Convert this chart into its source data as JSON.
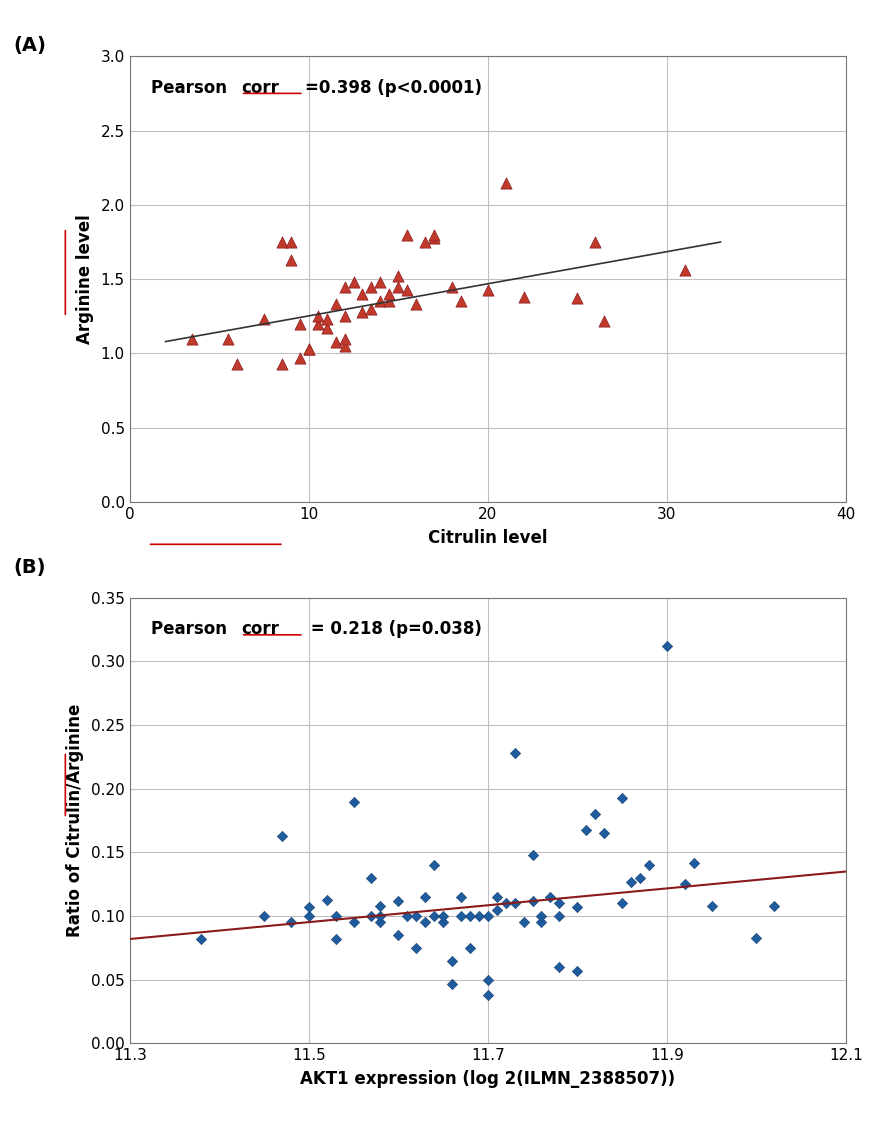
{
  "plot_A": {
    "title_label": "(A)",
    "annotation1": "Pearson ",
    "annotation2": "corr",
    "annotation3": "=0.398 (p<0.0001)",
    "xlabel": "Citrulin level",
    "ylabel": "Arginine level",
    "xlim": [
      0,
      40
    ],
    "ylim": [
      0.0,
      3.0
    ],
    "xticks": [
      0,
      10,
      20,
      30,
      40
    ],
    "yticks": [
      0.0,
      0.5,
      1.0,
      1.5,
      2.0,
      2.5,
      3.0
    ],
    "marker_color": "#C0392B",
    "marker_edge_color": "#8B1A1A",
    "line_color": "#333333",
    "scatter_x": [
      3.5,
      5.5,
      6.0,
      7.5,
      8.5,
      8.5,
      9.0,
      9.0,
      9.5,
      9.5,
      10.0,
      10.0,
      10.5,
      10.5,
      11.0,
      11.0,
      11.5,
      11.5,
      12.0,
      12.0,
      12.0,
      12.0,
      12.5,
      13.0,
      13.0,
      13.5,
      13.5,
      14.0,
      14.0,
      14.5,
      14.5,
      15.0,
      15.0,
      15.5,
      15.5,
      16.0,
      16.5,
      17.0,
      17.0,
      18.0,
      18.5,
      20.0,
      21.0,
      22.0,
      25.0,
      26.0,
      26.5,
      31.0
    ],
    "scatter_y": [
      1.1,
      1.1,
      0.93,
      1.23,
      0.93,
      1.75,
      1.63,
      1.75,
      0.97,
      1.2,
      1.03,
      1.03,
      1.2,
      1.25,
      1.17,
      1.23,
      1.08,
      1.33,
      1.05,
      1.1,
      1.25,
      1.45,
      1.48,
      1.28,
      1.4,
      1.3,
      1.45,
      1.35,
      1.48,
      1.35,
      1.4,
      1.45,
      1.52,
      1.43,
      1.8,
      1.33,
      1.75,
      1.78,
      1.8,
      1.45,
      1.35,
      1.43,
      2.15,
      1.38,
      1.37,
      1.75,
      1.22,
      1.56
    ],
    "trendline_x": [
      2,
      33
    ],
    "trendline_y": [
      1.08,
      1.75
    ]
  },
  "plot_B": {
    "title_label": "(B)",
    "annotation1": "Pearson ",
    "annotation2": "corr",
    "annotation3": " = 0.218 (p=0.038)",
    "xlabel": "AKT1 expression (log 2(ILMN_2388507))",
    "ylabel": "Ratio of Citrulin/Arginine",
    "xlim": [
      11.3,
      12.1
    ],
    "ylim": [
      0.0,
      0.35
    ],
    "xticks": [
      11.3,
      11.5,
      11.7,
      11.9,
      12.1
    ],
    "yticks": [
      0.0,
      0.05,
      0.1,
      0.15,
      0.2,
      0.25,
      0.3,
      0.35
    ],
    "marker_color": "#1F5C9E",
    "marker_edge_color": "#0D3A6B",
    "line_color": "#8B1A1A",
    "scatter_x": [
      11.38,
      11.45,
      11.47,
      11.48,
      11.5,
      11.5,
      11.52,
      11.53,
      11.53,
      11.55,
      11.55,
      11.57,
      11.57,
      11.58,
      11.58,
      11.58,
      11.6,
      11.6,
      11.61,
      11.62,
      11.62,
      11.63,
      11.63,
      11.64,
      11.64,
      11.65,
      11.65,
      11.66,
      11.66,
      11.67,
      11.67,
      11.68,
      11.68,
      11.69,
      11.7,
      11.7,
      11.7,
      11.71,
      11.71,
      11.72,
      11.73,
      11.73,
      11.74,
      11.75,
      11.75,
      11.76,
      11.76,
      11.77,
      11.78,
      11.78,
      11.78,
      11.8,
      11.8,
      11.81,
      11.82,
      11.83,
      11.85,
      11.85,
      11.86,
      11.87,
      11.88,
      11.9,
      11.92,
      11.93,
      11.95,
      12.0,
      12.02
    ],
    "scatter_y": [
      0.082,
      0.1,
      0.163,
      0.095,
      0.1,
      0.107,
      0.113,
      0.1,
      0.082,
      0.095,
      0.19,
      0.1,
      0.13,
      0.095,
      0.1,
      0.108,
      0.085,
      0.112,
      0.1,
      0.075,
      0.1,
      0.115,
      0.095,
      0.1,
      0.14,
      0.095,
      0.1,
      0.047,
      0.065,
      0.1,
      0.115,
      0.075,
      0.1,
      0.1,
      0.038,
      0.05,
      0.1,
      0.105,
      0.115,
      0.11,
      0.11,
      0.228,
      0.095,
      0.112,
      0.148,
      0.095,
      0.1,
      0.115,
      0.06,
      0.1,
      0.11,
      0.057,
      0.107,
      0.168,
      0.18,
      0.165,
      0.11,
      0.193,
      0.127,
      0.13,
      0.14,
      0.312,
      0.125,
      0.142,
      0.108,
      0.083,
      0.108
    ],
    "trendline_x": [
      11.3,
      12.1
    ],
    "trendline_y": [
      0.082,
      0.135
    ]
  },
  "bg_color": "#ffffff",
  "grid_color": "#c0c0c0",
  "font_family": "DejaVu Sans",
  "underline_color": "#cc0000"
}
